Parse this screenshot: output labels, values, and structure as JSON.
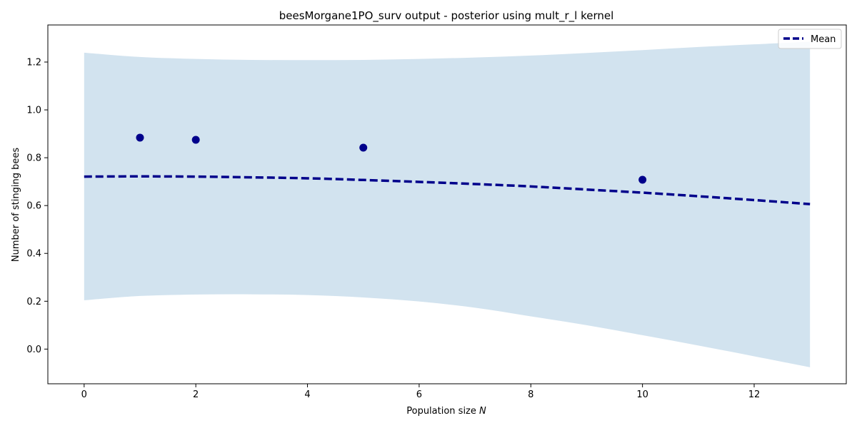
{
  "chart_data": {
    "type": "line",
    "title": "beesMorgane1PO_surv output - posterior using mult_r_l kernel",
    "xlabel_text": "Population size ",
    "xlabel_var": "N",
    "ylabel": "Number of stinging bees",
    "xlim": [
      -0.65,
      13.65
    ],
    "ylim": [
      -0.145,
      1.355
    ],
    "xticks": [
      0,
      2,
      4,
      6,
      8,
      10,
      12
    ],
    "xtick_labels": [
      "0",
      "2",
      "4",
      "6",
      "8",
      "10",
      "12"
    ],
    "yticks": [
      0.0,
      0.2,
      0.4,
      0.6,
      0.8,
      1.0,
      1.2
    ],
    "ytick_labels": [
      "0.0",
      "0.2",
      "0.4",
      "0.6",
      "0.8",
      "1.0",
      "1.2"
    ],
    "grid": false,
    "legend": {
      "location": "upper right",
      "entries": [
        "Mean"
      ]
    },
    "series": [
      {
        "name": "Mean",
        "kind": "line",
        "style": "dashed",
        "color": "#00008b",
        "x": [
          0,
          1,
          2,
          3,
          4,
          5,
          6,
          7,
          8,
          9,
          10,
          11,
          12,
          13
        ],
        "y": [
          0.721,
          0.722,
          0.721,
          0.718,
          0.714,
          0.707,
          0.699,
          0.69,
          0.68,
          0.667,
          0.654,
          0.639,
          0.623,
          0.606
        ]
      },
      {
        "kind": "scatter",
        "color": "#00008b",
        "x": [
          1,
          2,
          5,
          10
        ],
        "y": [
          0.884,
          0.875,
          0.842,
          0.708
        ]
      },
      {
        "kind": "band",
        "color": "#d2e3ef",
        "x": [
          0,
          1,
          2,
          3,
          4,
          5,
          6,
          7,
          8,
          9,
          10,
          11,
          12,
          13
        ],
        "upper": [
          1.239,
          1.221,
          1.213,
          1.209,
          1.208,
          1.209,
          1.213,
          1.219,
          1.227,
          1.238,
          1.25,
          1.263,
          1.274,
          1.285
        ],
        "lower": [
          0.204,
          0.222,
          0.228,
          0.229,
          0.226,
          0.216,
          0.199,
          0.173,
          0.137,
          0.1,
          0.058,
          0.015,
          -0.03,
          -0.076
        ]
      }
    ]
  }
}
